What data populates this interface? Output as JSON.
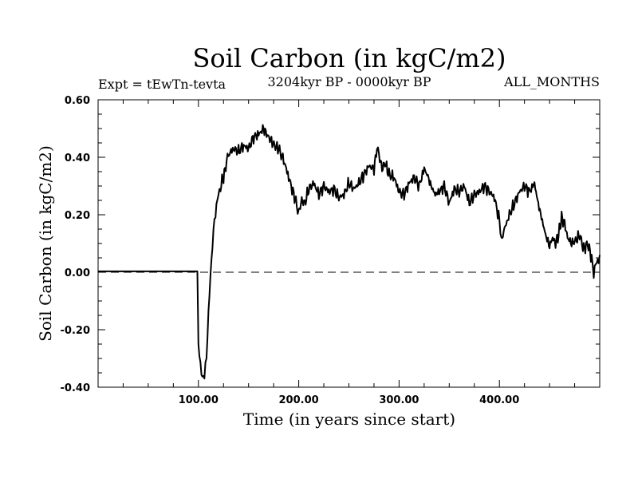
{
  "chart_data": {
    "type": "line",
    "title": "Soil Carbon (in kgC/m2)",
    "subtitle_left": "Expt = tEwTn-tevta",
    "subtitle_center": "3204kyr BP - 0000kyr BP",
    "subtitle_right": "ALL_MONTHS",
    "xlabel": "Time (in years since start)",
    "ylabel": "Soil Carbon (in kgC/m2)",
    "xlim": [
      0,
      500
    ],
    "ylim": [
      -0.4,
      0.6
    ],
    "x_ticks": [
      100,
      200,
      300,
      400
    ],
    "x_tick_labels": [
      "100.00",
      "200.00",
      "300.00",
      "400.00"
    ],
    "y_ticks": [
      -0.4,
      -0.2,
      0.0,
      0.2,
      0.4,
      0.6
    ],
    "y_tick_labels": [
      "-0.40",
      "-0.20",
      "0.00",
      "0.20",
      "0.40",
      "0.60"
    ],
    "zero_line": 0.0,
    "series": [
      {
        "name": "Soil Carbon",
        "x": [
          0,
          99,
          100,
          102,
          104,
          106,
          108,
          110,
          112,
          114,
          116,
          118,
          120,
          122,
          125,
          128,
          130,
          135,
          140,
          145,
          150,
          155,
          160,
          165,
          168,
          172,
          176,
          180,
          185,
          190,
          195,
          198,
          200,
          203,
          206,
          210,
          215,
          220,
          225,
          230,
          235,
          240,
          245,
          250,
          255,
          260,
          265,
          270,
          275,
          278,
          280,
          283,
          286,
          290,
          295,
          300,
          305,
          310,
          315,
          320,
          325,
          328,
          332,
          336,
          340,
          345,
          350,
          355,
          360,
          365,
          370,
          375,
          380,
          385,
          390,
          395,
          400,
          402,
          405,
          410,
          415,
          420,
          425,
          430,
          435,
          438,
          442,
          446,
          450,
          453,
          456,
          459,
          462,
          465,
          468,
          472,
          476,
          480,
          484,
          488,
          492,
          494,
          496,
          498,
          500
        ],
        "values": [
          0.003,
          0.003,
          -0.25,
          -0.32,
          -0.36,
          -0.37,
          -0.3,
          -0.15,
          0.0,
          0.1,
          0.18,
          0.22,
          0.27,
          0.3,
          0.33,
          0.38,
          0.41,
          0.43,
          0.42,
          0.44,
          0.43,
          0.47,
          0.48,
          0.5,
          0.48,
          0.46,
          0.44,
          0.43,
          0.39,
          0.33,
          0.27,
          0.24,
          0.21,
          0.25,
          0.24,
          0.29,
          0.31,
          0.27,
          0.3,
          0.28,
          0.29,
          0.26,
          0.27,
          0.31,
          0.29,
          0.31,
          0.34,
          0.37,
          0.36,
          0.43,
          0.41,
          0.36,
          0.38,
          0.34,
          0.33,
          0.28,
          0.27,
          0.31,
          0.33,
          0.3,
          0.36,
          0.34,
          0.3,
          0.27,
          0.28,
          0.3,
          0.24,
          0.29,
          0.28,
          0.3,
          0.24,
          0.27,
          0.28,
          0.3,
          0.28,
          0.26,
          0.18,
          0.11,
          0.15,
          0.2,
          0.24,
          0.28,
          0.3,
          0.28,
          0.31,
          0.25,
          0.19,
          0.13,
          0.09,
          0.12,
          0.1,
          0.13,
          0.19,
          0.17,
          0.12,
          0.1,
          0.11,
          0.13,
          0.08,
          0.1,
          0.05,
          -0.01,
          0.02,
          0.04,
          0.06
        ]
      }
    ]
  }
}
